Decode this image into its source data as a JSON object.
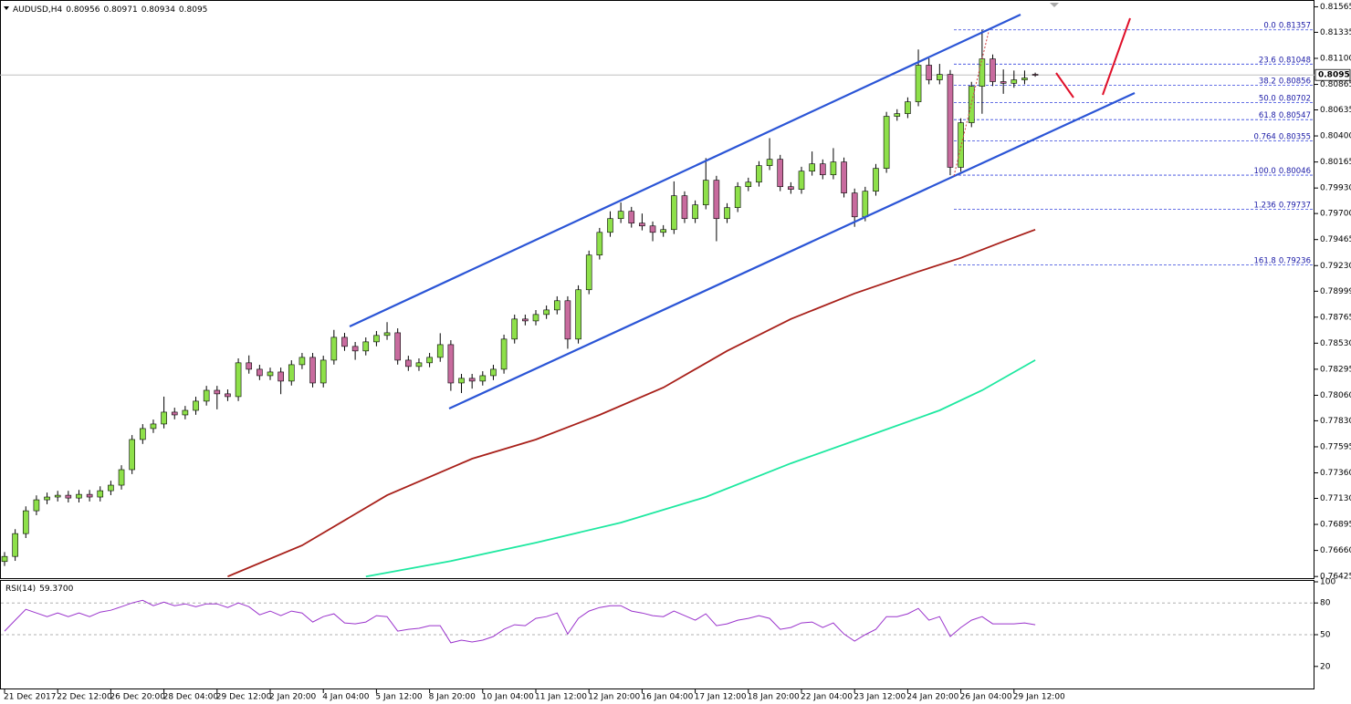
{
  "chart_data": {
    "type": "candlestick",
    "symbol": "AUDUSD,H4",
    "up_color": "#8ee04a",
    "down_color": "#c86b9e",
    "categories": [
      "21 Dec 2017",
      null,
      null,
      null,
      null,
      "22 Dec 12:00",
      null,
      null,
      null,
      null,
      "26 Dec 20:00",
      null,
      null,
      null,
      null,
      "28 Dec 04:00",
      null,
      null,
      null,
      null,
      "29 Dec 12:00",
      null,
      null,
      null,
      null,
      "2 Jan 20:00",
      null,
      null,
      null,
      null,
      "4 Jan 04:00",
      null,
      null,
      null,
      null,
      "5 Jan 12:00",
      null,
      null,
      null,
      null,
      "8 Jan 20:00",
      null,
      null,
      null,
      null,
      "10 Jan 04:00",
      null,
      null,
      null,
      null,
      "11 Jan 12:00",
      null,
      null,
      null,
      null,
      "12 Jan 20:00",
      null,
      null,
      null,
      null,
      "16 Jan 04:00",
      null,
      null,
      null,
      null,
      "17 Jan 12:00",
      null,
      null,
      null,
      null,
      "18 Jan 20:00",
      null,
      null,
      null,
      null,
      "22 Jan 04:00",
      null,
      null,
      null,
      null,
      "23 Jan 12:00",
      null,
      null,
      null,
      null,
      "24 Jan 20:00",
      null,
      null,
      null,
      null,
      "26 Jan 04:00",
      null,
      null,
      null,
      null,
      "29 Jan 12:00",
      null,
      null
    ],
    "open": [
      0.7656,
      0.76606,
      0.76812,
      0.77018,
      0.77117,
      0.77142,
      0.77158,
      0.77133,
      0.77166,
      0.77142,
      0.77199,
      0.77249,
      0.77389,
      0.77661,
      0.7776,
      0.77801,
      0.77908,
      0.77883,
      0.77924,
      0.78007,
      0.78105,
      0.78073,
      0.78048,
      0.78353,
      0.78295,
      0.78237,
      0.7827,
      0.78188,
      0.78336,
      0.78402,
      0.78171,
      0.78377,
      0.78583,
      0.78501,
      0.7846,
      0.78542,
      0.786,
      0.78624,
      0.78377,
      0.7832,
      0.78353,
      0.78402,
      0.78517,
      0.78171,
      0.78213,
      0.78188,
      0.78237,
      0.78295,
      0.78567,
      0.78748,
      0.78731,
      0.78789,
      0.7883,
      0.78913,
      0.78567,
      0.79012,
      0.79325,
      0.7953,
      0.79654,
      0.7972,
      0.79613,
      0.79588,
      0.7953,
      0.79555,
      0.7986,
      0.79654,
      0.79778,
      0.8,
      0.79654,
      0.79753,
      0.79942,
      0.79983,
      0.80132,
      0.80189,
      0.79942,
      0.79918,
      0.80082,
      0.80148,
      0.80049,
      0.80165,
      0.79885,
      0.7967,
      0.79901,
      0.80107,
      0.80577,
      0.80601,
      0.80708,
      0.81038,
      0.80906,
      0.80955,
      0.80117,
      0.80519,
      0.80848,
      0.81095,
      0.8089,
      0.80875,
      0.80906,
      0.80956
    ],
    "high": [
      0.76646,
      0.76852,
      0.77058,
      0.77157,
      0.77182,
      0.77198,
      0.77198,
      0.77206,
      0.77206,
      0.77239,
      0.77289,
      0.77429,
      0.77701,
      0.778,
      0.77841,
      0.78048,
      0.77948,
      0.77964,
      0.78047,
      0.78145,
      0.78145,
      0.78113,
      0.78393,
      0.7842,
      0.78335,
      0.7831,
      0.7831,
      0.78376,
      0.78442,
      0.78442,
      0.78417,
      0.7865,
      0.78623,
      0.78541,
      0.78582,
      0.7864,
      0.7872,
      0.78664,
      0.78417,
      0.78393,
      0.78442,
      0.7862,
      0.78557,
      0.78253,
      0.78253,
      0.78277,
      0.78335,
      0.78607,
      0.78788,
      0.78788,
      0.78829,
      0.7887,
      0.78953,
      0.78953,
      0.79052,
      0.79365,
      0.7957,
      0.7972,
      0.798,
      0.7976,
      0.797,
      0.79628,
      0.79595,
      0.7999,
      0.799,
      0.79818,
      0.802,
      0.8004,
      0.79793,
      0.79982,
      0.80023,
      0.80172,
      0.8038,
      0.80229,
      0.79982,
      0.80122,
      0.8026,
      0.80188,
      0.8029,
      0.80205,
      0.79925,
      0.79941,
      0.80147,
      0.80617,
      0.80641,
      0.80748,
      0.8118,
      0.811,
      0.8105,
      0.80995,
      0.80559,
      0.80888,
      0.81357,
      0.81135,
      0.81,
      0.8099,
      0.8099,
      0.80971
    ],
    "low": [
      0.7652,
      0.76566,
      0.76772,
      0.76978,
      0.77077,
      0.77102,
      0.77093,
      0.77093,
      0.77102,
      0.77102,
      0.77159,
      0.77209,
      0.77349,
      0.77621,
      0.7772,
      0.77761,
      0.77843,
      0.77843,
      0.77884,
      0.77967,
      0.77933,
      0.78008,
      0.78008,
      0.78255,
      0.78197,
      0.78197,
      0.7807,
      0.78148,
      0.78296,
      0.78131,
      0.78131,
      0.78337,
      0.78461,
      0.7838,
      0.7842,
      0.78502,
      0.7856,
      0.78337,
      0.7828,
      0.7828,
      0.78313,
      0.78362,
      0.781,
      0.7808,
      0.7812,
      0.78148,
      0.78197,
      0.78255,
      0.78527,
      0.78691,
      0.78691,
      0.78749,
      0.7879,
      0.7848,
      0.78527,
      0.78972,
      0.79285,
      0.7949,
      0.79614,
      0.79573,
      0.79548,
      0.7945,
      0.7949,
      0.79515,
      0.79614,
      0.79614,
      0.79738,
      0.7945,
      0.79614,
      0.79713,
      0.79902,
      0.79943,
      0.80092,
      0.79902,
      0.79878,
      0.79878,
      0.80042,
      0.80009,
      0.80009,
      0.79845,
      0.7958,
      0.7963,
      0.79861,
      0.80067,
      0.80537,
      0.80561,
      0.80668,
      0.80866,
      0.80866,
      0.80046,
      0.80077,
      0.80479,
      0.806,
      0.8085,
      0.8078,
      0.80835,
      0.80866,
      0.80934
    ],
    "close": [
      0.76606,
      0.76812,
      0.77018,
      0.77117,
      0.77142,
      0.77158,
      0.77133,
      0.77166,
      0.77142,
      0.77199,
      0.77249,
      0.77389,
      0.77661,
      0.7776,
      0.77801,
      0.77908,
      0.77883,
      0.77924,
      0.78007,
      0.78105,
      0.78073,
      0.78048,
      0.78353,
      0.78295,
      0.78237,
      0.7827,
      0.78188,
      0.78336,
      0.78402,
      0.78171,
      0.78377,
      0.78583,
      0.78501,
      0.7846,
      0.78542,
      0.786,
      0.78624,
      0.78377,
      0.7832,
      0.78353,
      0.78402,
      0.78517,
      0.78171,
      0.78213,
      0.78188,
      0.78237,
      0.78295,
      0.78567,
      0.78748,
      0.78731,
      0.78789,
      0.7883,
      0.78913,
      0.78567,
      0.79012,
      0.79325,
      0.7953,
      0.79654,
      0.7972,
      0.79613,
      0.79588,
      0.7953,
      0.79555,
      0.7986,
      0.79654,
      0.79778,
      0.8,
      0.79654,
      0.79753,
      0.79942,
      0.79983,
      0.80132,
      0.80189,
      0.79942,
      0.79918,
      0.80082,
      0.80148,
      0.80049,
      0.80165,
      0.79885,
      0.7967,
      0.79901,
      0.80107,
      0.80577,
      0.80601,
      0.80708,
      0.81038,
      0.80906,
      0.80955,
      0.80117,
      0.80519,
      0.80848,
      0.81095,
      0.8089,
      0.80875,
      0.80906,
      0.80923,
      0.8095
    ],
    "ylim": [
      0.7641,
      0.8161
    ],
    "yticks": [
      0.81565,
      0.81335,
      {
        "value": 0.811,
        "label": "0.81100"
      },
      0.80865,
      0.80635,
      {
        "value": 0.804,
        "label": "0.80400"
      },
      0.80165,
      {
        "value": 0.7993,
        "label": "0.79930"
      },
      {
        "value": 0.797,
        "label": "0.79700"
      },
      0.79465,
      {
        "value": 0.7923,
        "label": "0.79230"
      },
      0.78999,
      0.78765,
      {
        "value": 0.7853,
        "label": "0.78530"
      },
      0.78295,
      {
        "value": 0.7806,
        "label": "0.78060"
      },
      {
        "value": 0.7783,
        "label": "0.77830"
      },
      0.77595,
      {
        "value": 0.7736,
        "label": "0.77360"
      },
      {
        "value": 0.7713,
        "label": "0.77130"
      },
      0.76895,
      {
        "value": 0.7666,
        "label": "0.76660"
      },
      0.76425
    ],
    "moving_averages": [
      {
        "color": "#a8201a",
        "x": [
          21,
          28,
          36,
          44,
          50,
          56,
          62,
          68,
          74,
          80,
          86,
          90,
          94,
          97
        ],
        "values": [
          0.76425,
          0.76705,
          0.77158,
          0.77488,
          0.77661,
          0.77883,
          0.7813,
          0.7846,
          0.78748,
          0.78979,
          0.79176,
          0.793,
          0.79448,
          0.79555
        ]
      },
      {
        "color": "#1ee8a0",
        "x": [
          34,
          42,
          50,
          58,
          66,
          74,
          82,
          88,
          92,
          97
        ],
        "values": [
          0.76425,
          0.76565,
          0.7673,
          0.76911,
          0.77142,
          0.77446,
          0.77718,
          0.77924,
          0.78105,
          0.78377
        ]
      }
    ],
    "fib": {
      "color": "#3344dd",
      "levels": [
        {
          "level": "0.0",
          "price": 0.81357
        },
        {
          "level": "23.6",
          "price": 0.81048
        },
        {
          "level": "38.2",
          "price": 0.80856
        },
        {
          "level": "50.0",
          "price": 0.80702
        },
        {
          "level": "61.8",
          "price": 0.80547
        },
        {
          "level": "0.764",
          "price": 0.80355
        },
        {
          "level": "100.0",
          "price": 0.80046
        },
        {
          "level": "1.236",
          "price": 0.79737
        },
        {
          "level": "161.8",
          "price": 0.79236
        }
      ]
    },
    "rsi": {
      "title": "RSI(14)",
      "color": "#9a33cc",
      "last_value_label": "59.3700",
      "ylim": [
        0,
        100
      ],
      "yticks": [
        100,
        80,
        50,
        20
      ],
      "levels": [
        80,
        50
      ],
      "values": [
        53.4,
        63.7,
        74.0,
        70.5,
        67.1,
        70.5,
        67.1,
        70.5,
        67.1,
        71.4,
        73.1,
        76.5,
        80.0,
        82.5,
        77.4,
        80.8,
        77.4,
        79.1,
        76.5,
        79.1,
        79.1,
        75.7,
        80.0,
        76.5,
        68.8,
        72.3,
        68.0,
        72.3,
        70.5,
        62.0,
        67.1,
        69.7,
        61.1,
        60.3,
        62.0,
        68.0,
        67.1,
        53.4,
        55.1,
        56.0,
        58.5,
        58.5,
        42.3,
        44.8,
        43.1,
        44.8,
        48.3,
        55.1,
        59.4,
        58.5,
        65.4,
        67.1,
        70.5,
        50.6,
        65.4,
        72.3,
        75.7,
        77.4,
        77.4,
        72.3,
        70.5,
        68.0,
        67.1,
        72.3,
        68.0,
        63.7,
        69.7,
        58.5,
        60.3,
        63.7,
        65.4,
        68.0,
        65.4,
        55.1,
        56.8,
        61.1,
        62.0,
        56.8,
        61.1,
        50.6,
        44.0,
        50.0,
        55.1,
        67.1,
        67.1,
        69.7,
        74.8,
        63.7,
        67.1,
        48.3,
        56.8,
        63.7,
        67.1,
        60.3,
        60.3,
        60.3,
        61.1,
        59.37
      ]
    }
  }
}
